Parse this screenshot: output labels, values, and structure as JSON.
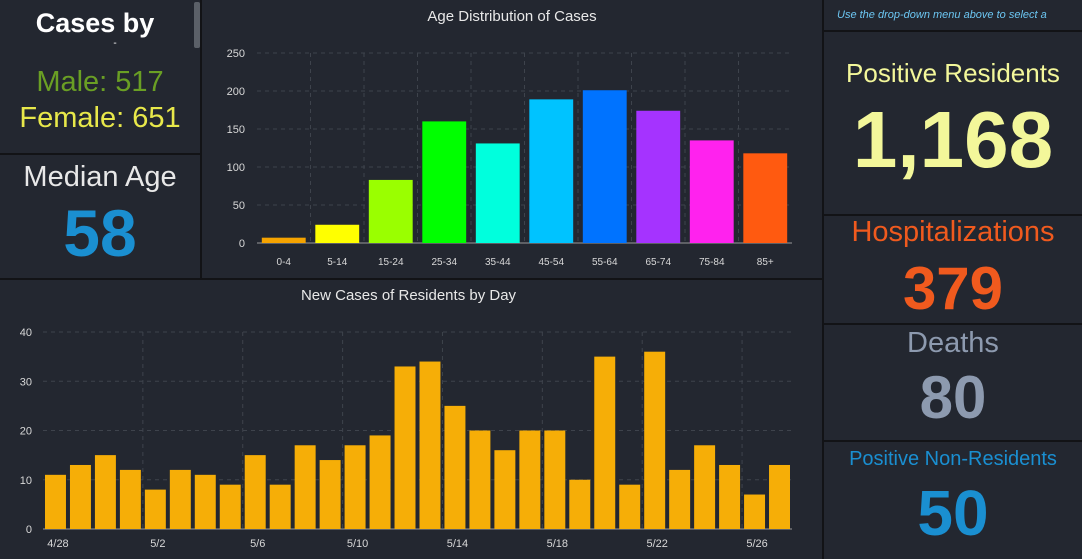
{
  "sex_panel": {
    "title": "Cases by",
    "title_cont": "-",
    "male": "Male: 517",
    "female": "Female: 651",
    "male_color": "#6a9f24",
    "female_color": "#e8e84a"
  },
  "median_panel": {
    "label": "Median Age",
    "value": "58",
    "value_color": "#1a8fd1"
  },
  "note": "Use the drop-down menu above to select a",
  "stats": {
    "positive_residents": {
      "label": "Positive Residents",
      "value": "1,168",
      "color": "#f3f79a"
    },
    "hospitalizations": {
      "label": "Hospitalizations",
      "value": "379",
      "color": "#f05a1e"
    },
    "deaths": {
      "label": "Deaths",
      "value": "80",
      "color": "#8d9aaf"
    },
    "positive_non_residents": {
      "label": "Positive Non-Residents",
      "value": "50",
      "color": "#1a8fd1"
    }
  },
  "chart_data": [
    {
      "type": "bar",
      "title": "Age Distribution of Cases",
      "categories": [
        "0-4",
        "5-14",
        "15-24",
        "25-34",
        "35-44",
        "45-54",
        "55-64",
        "65-74",
        "75-84",
        "85+"
      ],
      "values": [
        7,
        24,
        83,
        160,
        131,
        189,
        201,
        174,
        135,
        118
      ],
      "colors": [
        "#f5a300",
        "#ffff00",
        "#9aff00",
        "#00ff00",
        "#00ffdd",
        "#00c3ff",
        "#0073ff",
        "#a533ff",
        "#ff22ee",
        "#ff5a10"
      ],
      "yticks": [
        0,
        50,
        100,
        150,
        200,
        250
      ],
      "ylim": [
        0,
        250
      ],
      "grid": true
    },
    {
      "type": "bar",
      "title": "New Cases of Residents by Day",
      "x_tick_labels": [
        "4/28",
        "5/2",
        "5/6",
        "5/10",
        "5/14",
        "5/18",
        "5/22",
        "5/26"
      ],
      "values": [
        11,
        13,
        15,
        12,
        8,
        12,
        11,
        9,
        15,
        9,
        17,
        14,
        17,
        19,
        33,
        34,
        25,
        20,
        16,
        20,
        20,
        10,
        35,
        9,
        36,
        12,
        17,
        13,
        7,
        13
      ],
      "bar_color": "#f6ae07",
      "yticks": [
        0,
        10,
        20,
        30,
        40
      ],
      "ylim": [
        0,
        40
      ],
      "grid": true
    }
  ]
}
